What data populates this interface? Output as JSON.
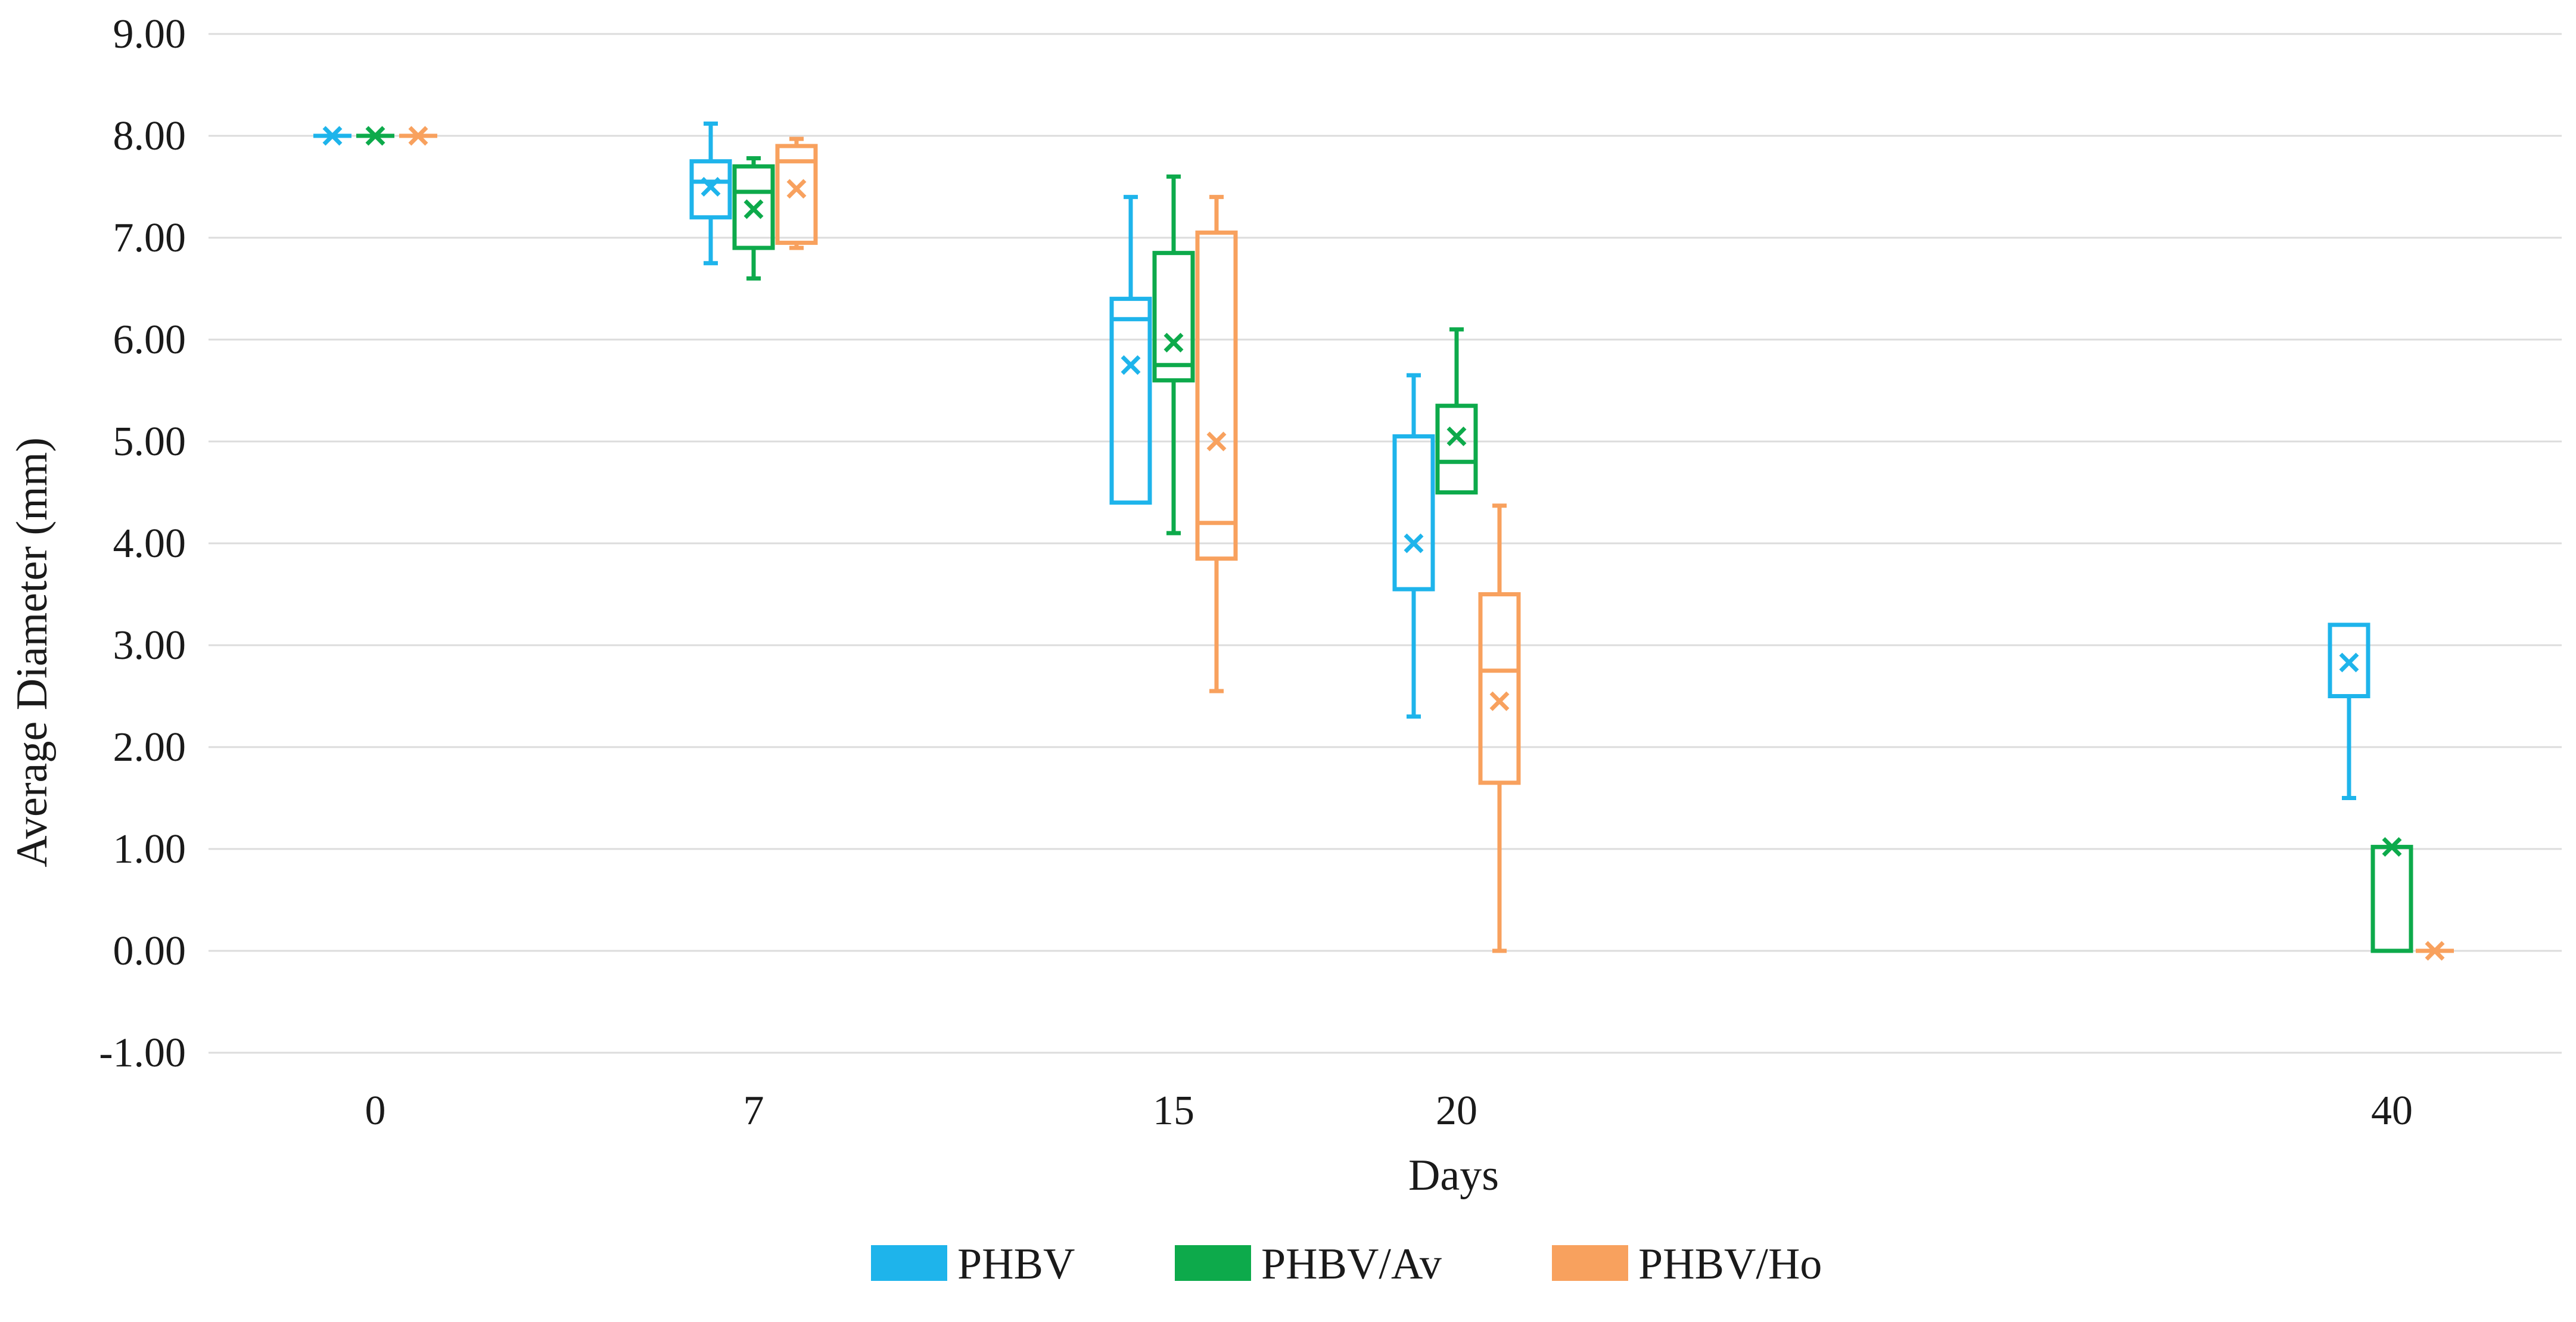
{
  "chart_data": {
    "type": "box",
    "title": "",
    "xlabel": "Days",
    "ylabel": "Average Diameter (mm)",
    "ylim": [
      -1,
      9
    ],
    "y_ticks": [
      "-1.00",
      "0.00",
      "1.00",
      "2.00",
      "3.00",
      "4.00",
      "5.00",
      "6.00",
      "7.00",
      "8.00",
      "9.00"
    ],
    "x_ticks": [
      0,
      7,
      15,
      20,
      40
    ],
    "grid": true,
    "legend_position": "bottom",
    "series": [
      {
        "name": "PHBV",
        "color": "#1EB4EB",
        "boxes": [
          {
            "day": 0,
            "min": 8.0,
            "q1": 8.0,
            "median": 8.0,
            "q3": 8.0,
            "max": 8.0,
            "mean": 8.0
          },
          {
            "day": 7,
            "min": 6.75,
            "q1": 7.2,
            "median": 7.55,
            "q3": 7.75,
            "max": 8.12,
            "mean": 7.5
          },
          {
            "day": 15,
            "min": 4.4,
            "q1": 4.4,
            "median": 6.2,
            "q3": 6.4,
            "max": 7.4,
            "mean": 5.75
          },
          {
            "day": 20,
            "min": 2.3,
            "q1": 3.55,
            "median": 3.55,
            "q3": 5.05,
            "max": 5.65,
            "mean": 4.0
          },
          {
            "day": 40,
            "min": 1.5,
            "q1": 2.5,
            "median": 2.5,
            "q3": 3.2,
            "max": 3.2,
            "mean": 2.83
          }
        ]
      },
      {
        "name": "PHBV/Av",
        "color": "#0DAA4B",
        "boxes": [
          {
            "day": 0,
            "min": 8.0,
            "q1": 8.0,
            "median": 8.0,
            "q3": 8.0,
            "max": 8.0,
            "mean": 8.0
          },
          {
            "day": 7,
            "min": 6.6,
            "q1": 6.9,
            "median": 7.45,
            "q3": 7.7,
            "max": 7.78,
            "mean": 7.28
          },
          {
            "day": 15,
            "min": 4.1,
            "q1": 5.6,
            "median": 5.75,
            "q3": 6.85,
            "max": 7.6,
            "mean": 5.97
          },
          {
            "day": 20,
            "min": 4.5,
            "q1": 4.5,
            "median": 4.8,
            "q3": 5.35,
            "max": 6.1,
            "mean": 5.05
          },
          {
            "day": 40,
            "min": 0.0,
            "q1": 0.0,
            "median": 0.0,
            "q3": 1.02,
            "max": 1.02,
            "mean": 1.02
          }
        ]
      },
      {
        "name": "PHBV/Ho",
        "color": "#F8A15E",
        "boxes": [
          {
            "day": 0,
            "min": 8.0,
            "q1": 8.0,
            "median": 8.0,
            "q3": 8.0,
            "max": 8.0,
            "mean": 8.0
          },
          {
            "day": 7,
            "min": 6.9,
            "q1": 6.95,
            "median": 7.75,
            "q3": 7.9,
            "max": 7.97,
            "mean": 7.48
          },
          {
            "day": 15,
            "min": 2.55,
            "q1": 3.85,
            "median": 4.2,
            "q3": 7.05,
            "max": 7.4,
            "mean": 5.0
          },
          {
            "day": 20,
            "min": 0.0,
            "q1": 1.65,
            "median": 2.75,
            "q3": 3.5,
            "max": 4.37,
            "mean": 2.45
          },
          {
            "day": 40,
            "min": 0.0,
            "q1": 0.0,
            "median": 0.0,
            "q3": 0.0,
            "max": 0.0,
            "mean": 0.0
          }
        ]
      }
    ]
  }
}
